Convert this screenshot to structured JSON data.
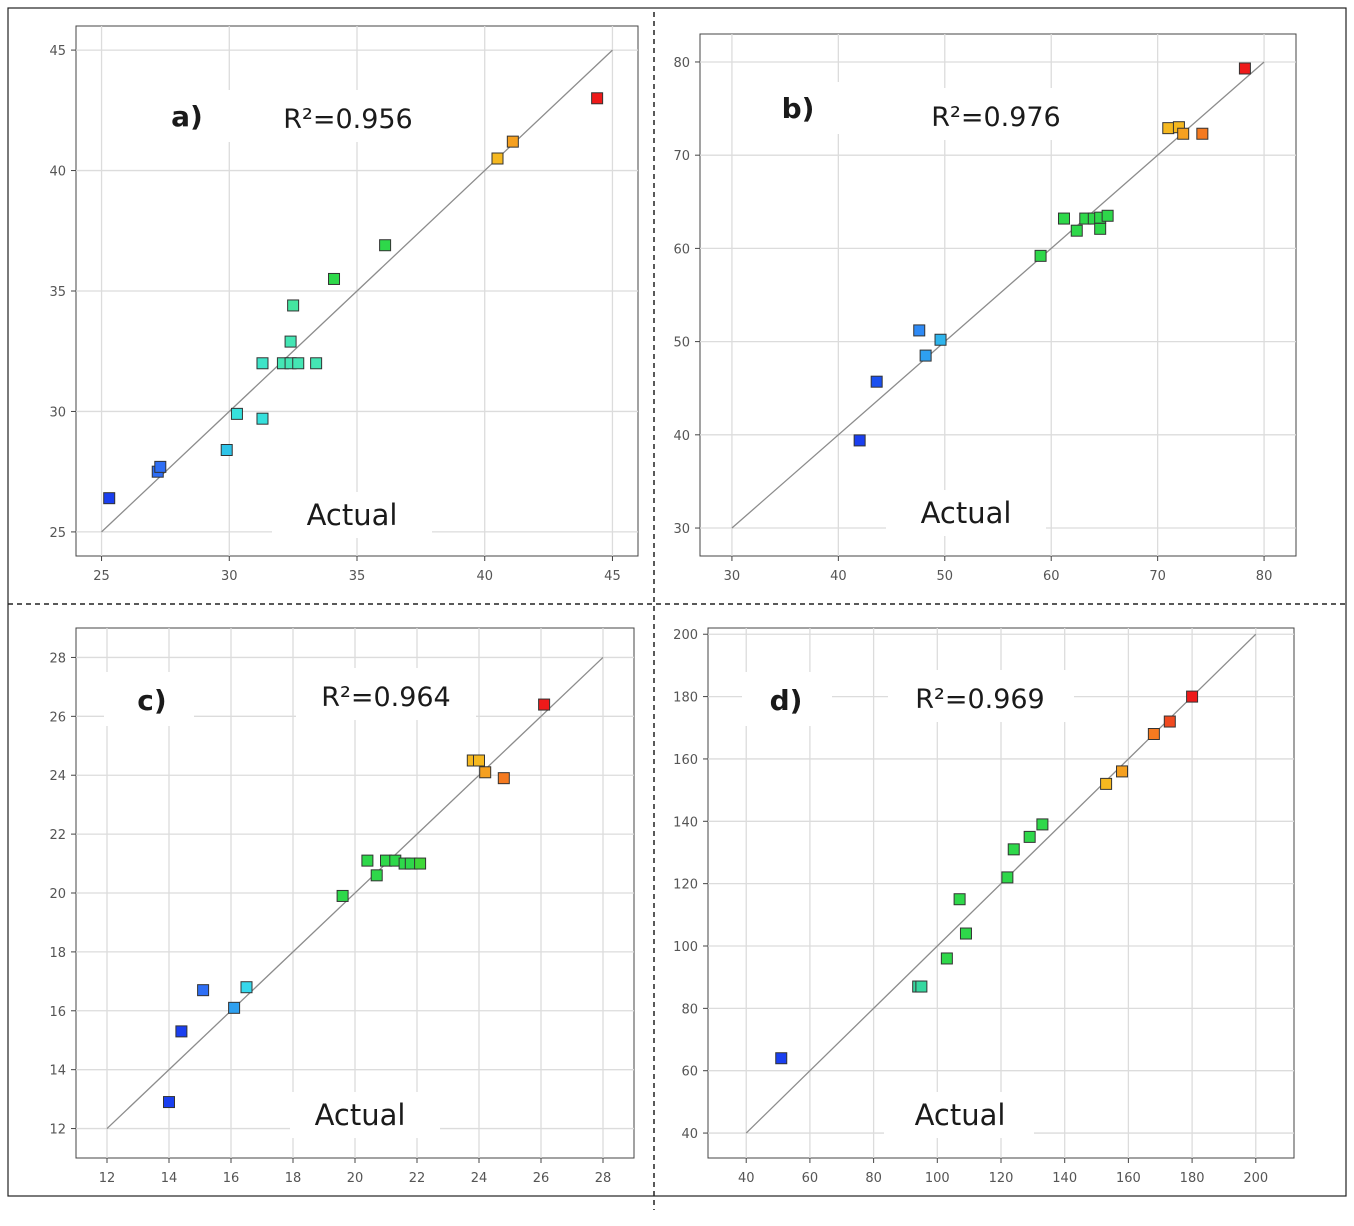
{
  "chart_data": [
    {
      "type": "scatter",
      "panel": "a)",
      "annotation": "R²=0.956",
      "xlabel": "Actual",
      "ylabel": "",
      "xlim": [
        24,
        46
      ],
      "ylim": [
        24,
        46
      ],
      "xticks": [
        25,
        30,
        35,
        40,
        45
      ],
      "yticks": [
        25,
        30,
        35,
        40,
        45
      ],
      "grid": true,
      "fit_line": [
        [
          25,
          25
        ],
        [
          45,
          45
        ]
      ],
      "points": [
        {
          "x": 25.3,
          "y": 26.4,
          "color": "#1a3ff0"
        },
        {
          "x": 27.2,
          "y": 27.5,
          "color": "#2e6ef5"
        },
        {
          "x": 27.3,
          "y": 27.7,
          "color": "#2e6ef5"
        },
        {
          "x": 29.9,
          "y": 28.4,
          "color": "#2ec4e8"
        },
        {
          "x": 30.3,
          "y": 29.9,
          "color": "#36e0dc"
        },
        {
          "x": 31.3,
          "y": 29.7,
          "color": "#36e0dc"
        },
        {
          "x": 31.3,
          "y": 32.0,
          "color": "#3ee4c8"
        },
        {
          "x": 32.1,
          "y": 32.0,
          "color": "#44e6b4"
        },
        {
          "x": 32.4,
          "y": 32.0,
          "color": "#44e6b4"
        },
        {
          "x": 32.7,
          "y": 32.0,
          "color": "#44e6b4"
        },
        {
          "x": 33.4,
          "y": 32.0,
          "color": "#44e6b4"
        },
        {
          "x": 32.4,
          "y": 32.9,
          "color": "#44e6b4"
        },
        {
          "x": 32.5,
          "y": 34.4,
          "color": "#44e6a0"
        },
        {
          "x": 34.1,
          "y": 35.5,
          "color": "#2ed84a"
        },
        {
          "x": 36.1,
          "y": 36.9,
          "color": "#2ed84a"
        },
        {
          "x": 40.5,
          "y": 40.5,
          "color": "#f5b820"
        },
        {
          "x": 41.1,
          "y": 41.2,
          "color": "#f5a020"
        },
        {
          "x": 44.4,
          "y": 43.0,
          "color": "#ee1a1a"
        }
      ]
    },
    {
      "type": "scatter",
      "panel": "b)",
      "annotation": "R²=0.976",
      "xlabel": "Actual",
      "ylabel": "",
      "xlim": [
        27,
        83
      ],
      "ylim": [
        27,
        83
      ],
      "xticks": [
        30,
        40,
        50,
        60,
        70,
        80
      ],
      "yticks": [
        30,
        40,
        50,
        60,
        70,
        80
      ],
      "grid": true,
      "fit_line": [
        [
          30,
          30
        ],
        [
          80,
          80
        ]
      ],
      "points": [
        {
          "x": 42.0,
          "y": 39.4,
          "color": "#1a3ff0"
        },
        {
          "x": 43.6,
          "y": 45.7,
          "color": "#1a50f0"
        },
        {
          "x": 47.6,
          "y": 51.2,
          "color": "#2e8af5"
        },
        {
          "x": 48.2,
          "y": 48.5,
          "color": "#2ea0f0"
        },
        {
          "x": 49.6,
          "y": 50.2,
          "color": "#2eb4ec"
        },
        {
          "x": 59.0,
          "y": 59.2,
          "color": "#2ed84a"
        },
        {
          "x": 61.2,
          "y": 63.2,
          "color": "#2ed84a"
        },
        {
          "x": 62.4,
          "y": 61.9,
          "color": "#2ed84a"
        },
        {
          "x": 63.2,
          "y": 63.2,
          "color": "#2ed84a"
        },
        {
          "x": 64.0,
          "y": 63.2,
          "color": "#2ed84a"
        },
        {
          "x": 64.6,
          "y": 62.1,
          "color": "#2ed84a"
        },
        {
          "x": 64.6,
          "y": 63.3,
          "color": "#2ed84a"
        },
        {
          "x": 65.3,
          "y": 63.5,
          "color": "#2ed84a"
        },
        {
          "x": 71.0,
          "y": 72.9,
          "color": "#f5b820"
        },
        {
          "x": 72.0,
          "y": 73.0,
          "color": "#f5b820"
        },
        {
          "x": 72.4,
          "y": 72.3,
          "color": "#f5a020"
        },
        {
          "x": 74.2,
          "y": 72.3,
          "color": "#f57a20"
        },
        {
          "x": 78.2,
          "y": 79.3,
          "color": "#ee1a1a"
        }
      ]
    },
    {
      "type": "scatter",
      "panel": "c)",
      "annotation": "R²=0.964",
      "xlabel": "Actual",
      "ylabel": "",
      "xlim": [
        11,
        29
      ],
      "ylim": [
        11,
        29
      ],
      "xticks": [
        12,
        14,
        16,
        18,
        20,
        22,
        24,
        26,
        28
      ],
      "yticks": [
        12,
        14,
        16,
        18,
        20,
        22,
        24,
        26,
        28
      ],
      "grid": true,
      "fit_line": [
        [
          12,
          12
        ],
        [
          28,
          28
        ]
      ],
      "points": [
        {
          "x": 14.0,
          "y": 12.9,
          "color": "#1a3ff0"
        },
        {
          "x": 14.4,
          "y": 15.3,
          "color": "#1a3ff0"
        },
        {
          "x": 15.1,
          "y": 16.7,
          "color": "#2e6ef5"
        },
        {
          "x": 16.1,
          "y": 16.1,
          "color": "#2ea0f0"
        },
        {
          "x": 16.5,
          "y": 16.8,
          "color": "#36d8ec"
        },
        {
          "x": 19.6,
          "y": 19.9,
          "color": "#2ed84a"
        },
        {
          "x": 20.4,
          "y": 21.1,
          "color": "#2ed84a"
        },
        {
          "x": 20.7,
          "y": 20.6,
          "color": "#2ed84a"
        },
        {
          "x": 21.0,
          "y": 21.1,
          "color": "#2ed84a"
        },
        {
          "x": 21.3,
          "y": 21.1,
          "color": "#2ed84a"
        },
        {
          "x": 21.6,
          "y": 21.0,
          "color": "#2ed84a"
        },
        {
          "x": 21.8,
          "y": 21.0,
          "color": "#2ed84a"
        },
        {
          "x": 22.1,
          "y": 21.0,
          "color": "#3ed838"
        },
        {
          "x": 23.8,
          "y": 24.5,
          "color": "#f5b820"
        },
        {
          "x": 24.0,
          "y": 24.5,
          "color": "#f5b820"
        },
        {
          "x": 24.2,
          "y": 24.1,
          "color": "#f5a020"
        },
        {
          "x": 24.8,
          "y": 23.9,
          "color": "#f57a20"
        },
        {
          "x": 26.1,
          "y": 26.4,
          "color": "#ee1a1a"
        }
      ]
    },
    {
      "type": "scatter",
      "panel": "d)",
      "annotation": "R²=0.969",
      "xlabel": "Actual",
      "ylabel": "",
      "xlim": [
        28,
        212
      ],
      "ylim": [
        32,
        202
      ],
      "xticks": [
        40,
        60,
        80,
        100,
        120,
        140,
        160,
        180,
        200
      ],
      "yticks": [
        40,
        60,
        80,
        100,
        120,
        140,
        160,
        180,
        200
      ],
      "grid": true,
      "fit_line": [
        [
          40,
          40
        ],
        [
          200,
          200
        ]
      ],
      "points": [
        {
          "x": 51,
          "y": 64,
          "color": "#1a3ff0"
        },
        {
          "x": 94,
          "y": 87,
          "color": "#36d8a0"
        },
        {
          "x": 95,
          "y": 87,
          "color": "#36d8a0"
        },
        {
          "x": 103,
          "y": 96,
          "color": "#2ed84a"
        },
        {
          "x": 107,
          "y": 115,
          "color": "#2ed84a"
        },
        {
          "x": 109,
          "y": 104,
          "color": "#2ed84a"
        },
        {
          "x": 122,
          "y": 122,
          "color": "#2ed84a"
        },
        {
          "x": 124,
          "y": 131,
          "color": "#2ed84a"
        },
        {
          "x": 129,
          "y": 135,
          "color": "#2ed84a"
        },
        {
          "x": 133,
          "y": 139,
          "color": "#2ed84a"
        },
        {
          "x": 153,
          "y": 152,
          "color": "#f5b820"
        },
        {
          "x": 158,
          "y": 156,
          "color": "#f5a020"
        },
        {
          "x": 168,
          "y": 168,
          "color": "#f57a20"
        },
        {
          "x": 173,
          "y": 172,
          "color": "#f04a20"
        },
        {
          "x": 180,
          "y": 180,
          "color": "#ee1a1a"
        }
      ]
    }
  ]
}
